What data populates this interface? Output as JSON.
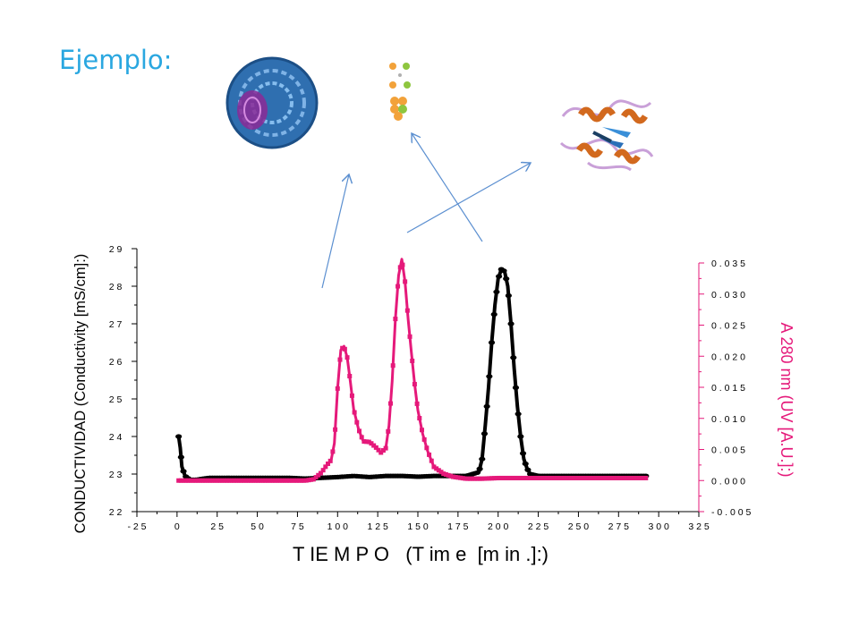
{
  "slide": {
    "title": "Ejemplo:"
  },
  "icons": [
    {
      "name": "virus-capsid-icon",
      "color": "#2f6fb0"
    },
    {
      "name": "small-molecules-icon",
      "color": "#f2a23a"
    },
    {
      "name": "protein-ribbon-icon",
      "color": "#d2691e"
    }
  ],
  "colors": {
    "conductivity": "#000000",
    "uv": "#e5197a",
    "arrows": "#5b8fd0",
    "title": "#2aa7e0"
  },
  "chart_data": {
    "type": "line",
    "xlabel": "T IE M P O   (T im e  [m in .]:)",
    "ylabel_left": "CONDUCTIVIDAD (Conductivity [mS/cm]:)",
    "ylabel_right": "A 280 nm (UV [A.U.]:)",
    "xlim": [
      -25,
      325
    ],
    "ylim_left": [
      22,
      29
    ],
    "ylim_right": [
      -0.005,
      0.035
    ],
    "x_ticks": [
      -25,
      0,
      25,
      50,
      75,
      100,
      125,
      150,
      175,
      200,
      225,
      250,
      275,
      300,
      325
    ],
    "x_tick_labels": [
      "- 2 5",
      "0",
      "2 5",
      "5 0",
      "7 5",
      "1 0 0",
      "1 2 5",
      "1 5 0",
      "1 7 5",
      "2 0 0",
      "2 2 5",
      "2 5 0",
      "2 7 5",
      "3 0 0",
      "3 2 5"
    ],
    "y_left_ticks": [
      22,
      23,
      24,
      25,
      26,
      27,
      28,
      29
    ],
    "y_left_tick_labels": [
      "2 2",
      "2 3",
      "2 4",
      "2 5",
      "2 6",
      "2 7",
      "2 8",
      "2 9"
    ],
    "y_right_ticks": [
      -0.005,
      0,
      0.005,
      0.01,
      0.015,
      0.02,
      0.025,
      0.03,
      0.035
    ],
    "y_right_tick_labels": [
      "- 0 . 0 0 5",
      "0 . 0 0 0",
      "0 . 0 0 5",
      "0 . 0 1 0",
      "0 . 0 1 5",
      "0 . 0 2 0",
      "0 . 0 2 5",
      "0 . 0 3 0",
      "0 . 0 3 5"
    ],
    "series": [
      {
        "axis": "left",
        "color": "#000000",
        "x": [
          1,
          2,
          3,
          5,
          8,
          12,
          20,
          30,
          40,
          50,
          60,
          70,
          80,
          90,
          100,
          110,
          120,
          130,
          140,
          150,
          160,
          170,
          180,
          188,
          190,
          192,
          194,
          196,
          198,
          200,
          202,
          204,
          206,
          208,
          210,
          212,
          214,
          216,
          218,
          220,
          225,
          240,
          260,
          280,
          293
        ],
        "y": [
          24.0,
          23.7,
          23.2,
          22.95,
          22.85,
          22.85,
          22.9,
          22.9,
          22.9,
          22.9,
          22.9,
          22.9,
          22.88,
          22.9,
          22.92,
          22.95,
          22.92,
          22.95,
          22.95,
          22.93,
          22.95,
          22.95,
          22.95,
          23.05,
          23.4,
          24.3,
          25.3,
          26.5,
          27.5,
          28.2,
          28.45,
          28.4,
          28.0,
          27.0,
          25.8,
          24.8,
          24.0,
          23.4,
          23.15,
          23.0,
          22.95,
          22.95,
          22.95,
          22.95,
          22.95
        ]
      },
      {
        "axis": "right",
        "color": "#e5197a",
        "x": [
          1,
          10,
          20,
          30,
          40,
          50,
          60,
          70,
          80,
          85,
          90,
          93,
          96,
          98,
          100,
          102,
          104,
          106,
          108,
          110,
          113,
          116,
          120,
          124,
          127,
          130,
          132,
          134,
          136,
          138,
          140,
          142,
          144,
          146,
          148,
          150,
          153,
          156,
          160,
          166,
          172,
          180,
          190,
          200,
          220,
          240,
          260,
          280,
          293
        ],
        "y": [
          0.0,
          0.0,
          0.0,
          0.0,
          0.0,
          0.0,
          0.0,
          0.0,
          0.0,
          0.0002,
          0.0013,
          0.0024,
          0.0033,
          0.006,
          0.0148,
          0.021,
          0.0216,
          0.0198,
          0.0158,
          0.0115,
          0.0083,
          0.0063,
          0.0062,
          0.0053,
          0.0045,
          0.0052,
          0.0088,
          0.016,
          0.026,
          0.033,
          0.0356,
          0.032,
          0.0258,
          0.0205,
          0.0155,
          0.0113,
          0.0075,
          0.0048,
          0.0022,
          0.0011,
          0.0006,
          0.0003,
          0.0003,
          0.0004,
          0.0004,
          0.0004,
          0.0004,
          0.0004,
          0.0004
        ]
      }
    ]
  }
}
